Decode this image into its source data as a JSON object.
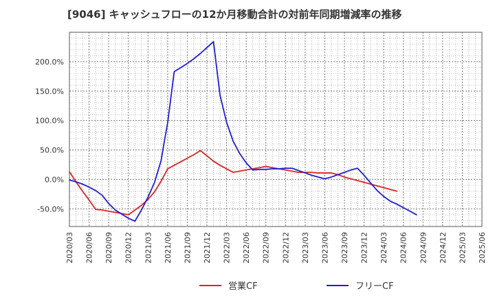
{
  "chart_data": {
    "type": "line",
    "title": "[9046]  キャッシュフローの12か月移動合計の対前年同期増減率の推移",
    "xlabel": "",
    "ylabel": "",
    "ylim": [
      -80,
      250
    ],
    "y_ticks": [
      200,
      150,
      100,
      50,
      0,
      -50
    ],
    "y_tick_labels": [
      "200.0%",
      "150.0%",
      "100.0%",
      "50.0%",
      "0.0%",
      "-50.0%"
    ],
    "x_tick_labels": [
      "2020/03",
      "2020/06",
      "2020/09",
      "2020/12",
      "2021/03",
      "2021/06",
      "2021/09",
      "2021/12",
      "2022/03",
      "2022/06",
      "2022/09",
      "2022/12",
      "2023/03",
      "2023/06",
      "2023/09",
      "2023/12",
      "2024/03",
      "2024/06",
      "2024/09",
      "2024/12",
      "2025/03",
      "2025/06"
    ],
    "grid": true,
    "legend_position": "bottom",
    "series": [
      {
        "name": "営業CF",
        "color": "#dd2222",
        "points": [
          [
            0,
            13
          ],
          [
            1,
            -4
          ],
          [
            2,
            -20
          ],
          [
            3,
            -35
          ],
          [
            4,
            -51
          ],
          [
            5,
            -52
          ],
          [
            6,
            -54
          ],
          [
            7,
            -56
          ],
          [
            8,
            -58
          ],
          [
            9,
            -60
          ],
          [
            10,
            -52
          ],
          [
            11,
            -44
          ],
          [
            12,
            -34
          ],
          [
            13,
            -21
          ],
          [
            14,
            -3
          ],
          [
            15,
            18
          ],
          [
            16,
            24
          ],
          [
            17,
            30
          ],
          [
            18,
            36
          ],
          [
            19,
            42
          ],
          [
            20,
            49
          ],
          [
            21,
            40
          ],
          [
            22,
            31
          ],
          [
            23,
            24
          ],
          [
            24,
            18
          ],
          [
            25,
            12
          ],
          [
            26,
            14
          ],
          [
            27,
            16
          ],
          [
            28,
            18
          ],
          [
            29,
            20
          ],
          [
            30,
            22
          ],
          [
            31,
            20
          ],
          [
            32,
            18
          ],
          [
            33,
            16
          ],
          [
            34,
            14
          ],
          [
            35,
            12
          ],
          [
            36,
            12
          ],
          [
            37,
            12
          ],
          [
            38,
            11
          ],
          [
            39,
            11
          ],
          [
            40,
            11
          ],
          [
            41,
            8
          ],
          [
            42,
            4
          ],
          [
            43,
            1
          ],
          [
            44,
            -2
          ],
          [
            45,
            -5
          ],
          [
            46,
            -8
          ],
          [
            47,
            -11
          ],
          [
            48,
            -14
          ],
          [
            49,
            -17
          ],
          [
            50,
            -20
          ]
        ]
      },
      {
        "name": "フリーCF",
        "color": "#1f1fd0",
        "points": [
          [
            0,
            -1
          ],
          [
            1,
            -4
          ],
          [
            2,
            -8
          ],
          [
            3,
            -13
          ],
          [
            4,
            -19
          ],
          [
            5,
            -27
          ],
          [
            6,
            -41
          ],
          [
            7,
            -52
          ],
          [
            8,
            -59
          ],
          [
            9,
            -66
          ],
          [
            10,
            -71
          ],
          [
            11,
            -52
          ],
          [
            12,
            -30
          ],
          [
            13,
            -5
          ],
          [
            14,
            32
          ],
          [
            14.5,
            65
          ],
          [
            15,
            96
          ],
          [
            16,
            183
          ],
          [
            17,
            190
          ],
          [
            18,
            197
          ],
          [
            19,
            205
          ],
          [
            20,
            214
          ],
          [
            21,
            224
          ],
          [
            22,
            234
          ],
          [
            23,
            143
          ],
          [
            24,
            97
          ],
          [
            25,
            65
          ],
          [
            26,
            44
          ],
          [
            27,
            28
          ],
          [
            28,
            16
          ],
          [
            29,
            17
          ],
          [
            30,
            17
          ],
          [
            31,
            18
          ],
          [
            32,
            18
          ],
          [
            33,
            19
          ],
          [
            34,
            19
          ],
          [
            35,
            15
          ],
          [
            36,
            11
          ],
          [
            37,
            7
          ],
          [
            38,
            4
          ],
          [
            39,
            1
          ],
          [
            40,
            4
          ],
          [
            41,
            8
          ],
          [
            42,
            12
          ],
          [
            43,
            16
          ],
          [
            44,
            19
          ],
          [
            45,
            7
          ],
          [
            46,
            -6
          ],
          [
            47,
            -19
          ],
          [
            48,
            -29
          ],
          [
            49,
            -37
          ],
          [
            50,
            -42
          ],
          [
            51,
            -48
          ],
          [
            52,
            -54
          ],
          [
            53,
            -60
          ]
        ]
      }
    ]
  }
}
